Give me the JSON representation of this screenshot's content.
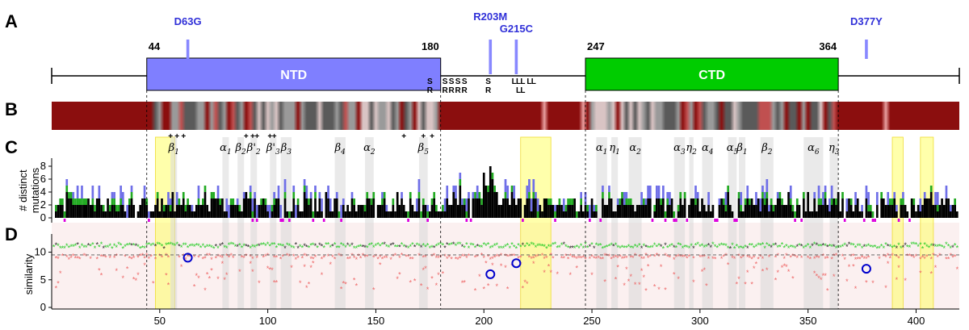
{
  "panels": {
    "A": "A",
    "B": "B",
    "C": "C",
    "D": "D"
  },
  "chart_data": {
    "type": "bar",
    "xlim": [
      0,
      420
    ],
    "x_ticks": [
      50,
      100,
      150,
      200,
      250,
      300,
      350,
      400
    ],
    "domains": [
      {
        "name": "NTD",
        "start": 44,
        "end": 180,
        "color": "#7f7fff"
      },
      {
        "name": "CTD",
        "start": 247,
        "end": 364,
        "color": "#00cc00"
      }
    ],
    "domain_bounds": [
      44,
      180,
      247,
      364
    ],
    "mutations": [
      {
        "label": "D63G",
        "position": 63
      },
      {
        "label": "R203M",
        "position": 203
      },
      {
        "label": "G215C",
        "position": 215
      },
      {
        "label": "D377Y",
        "position": 377
      }
    ],
    "sr_marks": [
      {
        "position": 175,
        "text": "S"
      },
      {
        "position": 175,
        "text": "R"
      },
      {
        "position": 182,
        "text": "S"
      },
      {
        "position": 182,
        "text": "R"
      },
      {
        "position": 185,
        "text": "S"
      },
      {
        "position": 185,
        "text": "R"
      },
      {
        "position": 188,
        "text": "S"
      },
      {
        "position": 188,
        "text": "R"
      },
      {
        "position": 191,
        "text": "S"
      },
      {
        "position": 191,
        "text": "R"
      },
      {
        "position": 202,
        "text": "S"
      },
      {
        "position": 202,
        "text": "R"
      },
      {
        "position": 214,
        "text": "L"
      },
      {
        "position": 216,
        "text": "L"
      },
      {
        "position": 218,
        "text": "L"
      },
      {
        "position": 221,
        "text": "L"
      },
      {
        "position": 223,
        "text": "L"
      },
      {
        "position": 216,
        "text": "L"
      },
      {
        "position": 218,
        "text": "L"
      }
    ],
    "hydrophobicity_stripe": "dark red = high, white/grey = low",
    "secondary_structure": [
      {
        "label": "β1",
        "start": 55,
        "end": 58
      },
      {
        "label": "α1",
        "start": 79,
        "end": 82
      },
      {
        "label": "β2",
        "start": 86,
        "end": 89
      },
      {
        "label": "β'2",
        "start": 92,
        "end": 95
      },
      {
        "label": "β'3",
        "start": 101,
        "end": 104
      },
      {
        "label": "β3",
        "start": 106,
        "end": 111
      },
      {
        "label": "β4",
        "start": 131,
        "end": 136
      },
      {
        "label": "α2",
        "start": 145,
        "end": 149
      },
      {
        "label": "β5",
        "start": 170,
        "end": 174
      },
      {
        "label": "α1",
        "start": 252,
        "end": 257
      },
      {
        "label": "η1",
        "start": 259,
        "end": 262
      },
      {
        "label": "α2",
        "start": 267,
        "end": 273
      },
      {
        "label": "α3",
        "start": 288,
        "end": 293
      },
      {
        "label": "η2",
        "start": 295,
        "end": 297
      },
      {
        "label": "α4",
        "start": 301,
        "end": 306
      },
      {
        "label": "α5",
        "start": 313,
        "end": 317
      },
      {
        "label": "β1",
        "start": 318,
        "end": 321
      },
      {
        "label": "β2",
        "start": 328,
        "end": 334
      },
      {
        "label": "α6",
        "start": 348,
        "end": 357
      },
      {
        "label": "η3",
        "start": 360,
        "end": 364
      }
    ],
    "highlight_regions": [
      {
        "start": 48,
        "end": 57
      },
      {
        "start": 217,
        "end": 231
      },
      {
        "start": 389,
        "end": 394
      },
      {
        "start": 402,
        "end": 408
      }
    ],
    "binding_marks": [
      55,
      58,
      61,
      90,
      93,
      95,
      101,
      103,
      163,
      172,
      176
    ],
    "panel_C": {
      "ylabel": "# distinct mutations",
      "ylim": [
        0,
        9
      ],
      "yticks": [
        0,
        2,
        4,
        6,
        8
      ]
    },
    "panel_D": {
      "ylabel": "similarity",
      "ylim": [
        0,
        13
      ],
      "yticks": [
        0,
        5,
        10
      ],
      "reference_line": 9.5,
      "circled_points": [
        {
          "position": 63,
          "value": 9
        },
        {
          "position": 203,
          "value": 6
        },
        {
          "position": 215,
          "value": 8
        },
        {
          "position": 377,
          "value": 7
        }
      ]
    }
  }
}
